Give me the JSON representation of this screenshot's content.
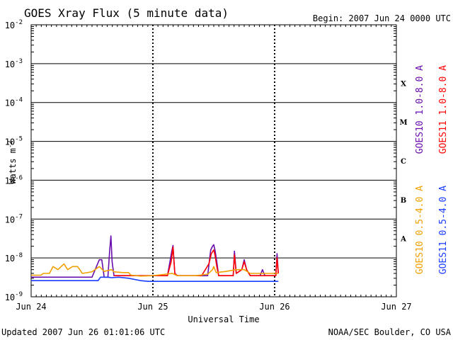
{
  "header": {
    "title": "GOES Xray Flux (5 minute data)",
    "begin": "Begin:  2007 Jun 24 0000 UTC"
  },
  "footer": {
    "updated": "Updated 2007 Jun 26 01:01:06 UTC",
    "credit": "NOAA/SEC Boulder, CO USA"
  },
  "chart_data": {
    "type": "line",
    "title": "GOES Xray Flux (5 minute data)",
    "xlabel": "Universal Time",
    "ylabel": "Watts m",
    "ylabel_exponent": "-2",
    "yscale": "log",
    "ylim": [
      1e-09,
      0.01
    ],
    "xlim_days": [
      0,
      3
    ],
    "x_ticks": [
      {
        "day": 0,
        "label": "Jun 24"
      },
      {
        "day": 1,
        "label": "Jun 25"
      },
      {
        "day": 2,
        "label": "Jun 26"
      },
      {
        "day": 3,
        "label": "Jun 27"
      }
    ],
    "y_ticks": [
      {
        "exp": -9,
        "base": "10",
        "sup": "-9"
      },
      {
        "exp": -8,
        "base": "10",
        "sup": "-8"
      },
      {
        "exp": -7,
        "base": "10",
        "sup": "-7"
      },
      {
        "exp": -6,
        "base": "10",
        "sup": "-6"
      },
      {
        "exp": -5,
        "base": "10",
        "sup": "-5"
      },
      {
        "exp": -4,
        "base": "10",
        "sup": "-4"
      },
      {
        "exp": -3,
        "base": "10",
        "sup": "-3"
      },
      {
        "exp": -2,
        "base": "10",
        "sup": "-2"
      }
    ],
    "flare_classes": [
      {
        "label": "X",
        "exp": -3.5
      },
      {
        "label": "M",
        "exp": -4.5
      },
      {
        "label": "C",
        "exp": -5.5
      },
      {
        "label": "B",
        "exp": -6.5
      },
      {
        "label": "A",
        "exp": -7.5
      }
    ],
    "grid": true,
    "legend_placement": "right",
    "series": [
      {
        "name": "GOES10 1.0-8.0 A",
        "color": "#6a0dad",
        "points": [
          [
            0,
            3.2e-09
          ],
          [
            0.5,
            3.2e-09
          ],
          [
            0.56,
            9e-09
          ],
          [
            0.58,
            9e-09
          ],
          [
            0.6,
            3.2e-09
          ],
          [
            0.63,
            3.2e-09
          ],
          [
            0.645,
            1.5e-08
          ],
          [
            0.655,
            3.7e-08
          ],
          [
            0.665,
            8e-09
          ],
          [
            0.68,
            3.5e-09
          ],
          [
            1.0,
            3.5e-09
          ],
          [
            1.12,
            3.5e-09
          ],
          [
            1.155,
            1.5e-08
          ],
          [
            1.165,
            2.1e-08
          ],
          [
            1.18,
            4e-09
          ],
          [
            1.2,
            3.5e-09
          ],
          [
            1.4,
            3.5e-09
          ],
          [
            1.45,
            3.5e-09
          ],
          [
            1.465,
            9e-09
          ],
          [
            1.475,
            1.6e-08
          ],
          [
            1.49,
            2e-08
          ],
          [
            1.5,
            2.2e-08
          ],
          [
            1.51,
            1.6e-08
          ],
          [
            1.525,
            8e-09
          ],
          [
            1.54,
            3.5e-09
          ],
          [
            1.66,
            3.5e-09
          ],
          [
            1.67,
            1.5e-08
          ],
          [
            1.685,
            4e-09
          ],
          [
            1.73,
            5e-09
          ],
          [
            1.75,
            9e-09
          ],
          [
            1.77,
            5e-09
          ],
          [
            1.8,
            3.5e-09
          ],
          [
            1.88,
            3.5e-09
          ],
          [
            1.9,
            5e-09
          ],
          [
            1.92,
            3.5e-09
          ],
          [
            2.01,
            3.5e-09
          ],
          [
            2.02,
            1.3e-08
          ],
          [
            2.03,
            4e-09
          ]
        ]
      },
      {
        "name": "GOES11 1.0-8.0 A",
        "color": "#ff0000",
        "points": [
          [
            0.68,
            3.5e-09
          ],
          [
            1.0,
            3.5e-09
          ],
          [
            1.12,
            3.5e-09
          ],
          [
            1.15,
            8e-09
          ],
          [
            1.165,
            1.9e-08
          ],
          [
            1.18,
            4e-09
          ],
          [
            1.2,
            3.5e-09
          ],
          [
            1.4,
            3.5e-09
          ],
          [
            1.46,
            7e-09
          ],
          [
            1.48,
            1.3e-08
          ],
          [
            1.5,
            1.6e-08
          ],
          [
            1.51,
            1.2e-08
          ],
          [
            1.525,
            6e-09
          ],
          [
            1.54,
            3.5e-09
          ],
          [
            1.66,
            3.5e-09
          ],
          [
            1.67,
            1.2e-08
          ],
          [
            1.685,
            4e-09
          ],
          [
            1.73,
            5e-09
          ],
          [
            1.75,
            8e-09
          ],
          [
            1.77,
            5e-09
          ],
          [
            1.8,
            3.5e-09
          ],
          [
            2.01,
            3.5e-09
          ],
          [
            2.02,
            1e-08
          ],
          [
            2.03,
            4e-09
          ]
        ]
      },
      {
        "name": "GOES10 0.5-4.0 A",
        "color": "#f0a000",
        "points": [
          [
            0,
            3.6e-09
          ],
          [
            0.08,
            3.6e-09
          ],
          [
            0.1,
            4e-09
          ],
          [
            0.15,
            4e-09
          ],
          [
            0.18,
            6e-09
          ],
          [
            0.22,
            5e-09
          ],
          [
            0.27,
            7e-09
          ],
          [
            0.3,
            5e-09
          ],
          [
            0.34,
            6e-09
          ],
          [
            0.38,
            6e-09
          ],
          [
            0.4,
            5e-09
          ],
          [
            0.42,
            4e-09
          ],
          [
            0.5,
            4.4e-09
          ],
          [
            0.56,
            6e-09
          ],
          [
            0.6,
            4.5e-09
          ],
          [
            0.66,
            5e-09
          ],
          [
            0.68,
            4.4e-09
          ],
          [
            0.75,
            4.2e-09
          ],
          [
            0.8,
            4.2e-09
          ],
          [
            0.82,
            3.6e-09
          ],
          [
            0.9,
            3.4e-09
          ],
          [
            1.0,
            3.5e-09
          ],
          [
            1.16,
            4e-09
          ],
          [
            1.2,
            3.5e-09
          ],
          [
            1.35,
            3.5e-09
          ],
          [
            1.45,
            3.8e-09
          ],
          [
            1.49,
            5e-09
          ],
          [
            1.5,
            6e-09
          ],
          [
            1.52,
            4.2e-09
          ],
          [
            1.6,
            4.5e-09
          ],
          [
            1.68,
            5e-09
          ],
          [
            1.75,
            5e-09
          ],
          [
            1.8,
            4e-09
          ],
          [
            2.03,
            4e-09
          ]
        ]
      },
      {
        "name": "GOES11 0.5-4.0 A",
        "color": "#1a3cff",
        "points": [
          [
            0,
            2.6e-09
          ],
          [
            0.12,
            2.6e-09
          ],
          [
            0.2,
            2.6e-09
          ],
          [
            0.55,
            2.6e-09
          ],
          [
            0.57,
            3.2e-09
          ],
          [
            0.63,
            3.2e-09
          ],
          [
            0.66,
            3.1e-09
          ],
          [
            0.72,
            3.2e-09
          ],
          [
            0.8,
            3e-09
          ],
          [
            0.85,
            2.8e-09
          ],
          [
            0.9,
            2.6e-09
          ],
          [
            0.96,
            2.5e-09
          ],
          [
            1.0,
            2.5e-09
          ],
          [
            1.2,
            2.5e-09
          ],
          [
            2.03,
            2.5e-09
          ]
        ]
      }
    ]
  }
}
